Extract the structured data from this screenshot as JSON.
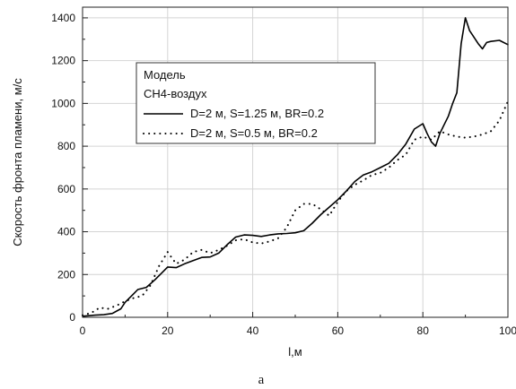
{
  "chart_data": {
    "type": "line",
    "xlabel": "l,м",
    "ylabel": "Скорость фронта пламени, м/с",
    "xlim": [
      0,
      100
    ],
    "ylim": [
      0,
      1450
    ],
    "xticks": [
      0,
      20,
      40,
      60,
      80,
      100
    ],
    "yticks": [
      0,
      200,
      400,
      600,
      800,
      1000,
      1200,
      1400
    ],
    "xtick_labels": [
      "0",
      "20",
      "40",
      "60",
      "80",
      "100"
    ],
    "ytick_labels": [
      "0",
      "200",
      "400",
      "600",
      "800",
      "1000",
      "1200",
      "1400"
    ],
    "grid": true,
    "legend": {
      "position": "upper-left",
      "title_lines": [
        "Модель",
        "CH4-воздух"
      ]
    },
    "series": [
      {
        "name": "D=2 м, S=1.25 м, BR=0.2",
        "style": "solid",
        "color": "#000000",
        "points": [
          [
            0,
            5
          ],
          [
            3,
            10
          ],
          [
            5,
            12
          ],
          [
            7,
            18
          ],
          [
            9,
            40
          ],
          [
            10,
            70
          ],
          [
            12,
            110
          ],
          [
            13,
            130
          ],
          [
            15,
            140
          ],
          [
            17,
            175
          ],
          [
            19,
            215
          ],
          [
            20,
            235
          ],
          [
            22,
            232
          ],
          [
            24,
            250
          ],
          [
            26,
            265
          ],
          [
            28,
            280
          ],
          [
            30,
            282
          ],
          [
            32,
            300
          ],
          [
            34,
            340
          ],
          [
            36,
            375
          ],
          [
            38,
            385
          ],
          [
            40,
            383
          ],
          [
            42,
            378
          ],
          [
            44,
            385
          ],
          [
            46,
            390
          ],
          [
            48,
            392
          ],
          [
            50,
            395
          ],
          [
            52,
            405
          ],
          [
            54,
            440
          ],
          [
            56,
            480
          ],
          [
            58,
            515
          ],
          [
            60,
            550
          ],
          [
            62,
            590
          ],
          [
            64,
            635
          ],
          [
            66,
            665
          ],
          [
            68,
            680
          ],
          [
            70,
            700
          ],
          [
            72,
            720
          ],
          [
            74,
            760
          ],
          [
            76,
            810
          ],
          [
            78,
            880
          ],
          [
            80,
            905
          ],
          [
            81,
            860
          ],
          [
            82,
            820
          ],
          [
            83,
            800
          ],
          [
            84,
            860
          ],
          [
            85,
            900
          ],
          [
            86,
            940
          ],
          [
            87,
            1000
          ],
          [
            88,
            1050
          ],
          [
            89,
            1280
          ],
          [
            90,
            1400
          ],
          [
            91,
            1340
          ],
          [
            92,
            1310
          ],
          [
            93,
            1280
          ],
          [
            94,
            1255
          ],
          [
            95,
            1285
          ],
          [
            96,
            1290
          ],
          [
            98,
            1295
          ],
          [
            100,
            1275
          ]
        ]
      },
      {
        "name": "D=2 м, S=0.5 м, BR=0.2",
        "style": "dotted",
        "color": "#000000",
        "points": [
          [
            0,
            10
          ],
          [
            2,
            20
          ],
          [
            4,
            45
          ],
          [
            6,
            40
          ],
          [
            8,
            55
          ],
          [
            10,
            75
          ],
          [
            12,
            90
          ],
          [
            14,
            100
          ],
          [
            16,
            150
          ],
          [
            18,
            240
          ],
          [
            20,
            305
          ],
          [
            22,
            250
          ],
          [
            24,
            270
          ],
          [
            26,
            305
          ],
          [
            28,
            315
          ],
          [
            30,
            300
          ],
          [
            32,
            315
          ],
          [
            34,
            335
          ],
          [
            36,
            360
          ],
          [
            38,
            365
          ],
          [
            40,
            350
          ],
          [
            42,
            345
          ],
          [
            44,
            355
          ],
          [
            46,
            370
          ],
          [
            48,
            420
          ],
          [
            50,
            500
          ],
          [
            52,
            530
          ],
          [
            54,
            530
          ],
          [
            56,
            505
          ],
          [
            58,
            475
          ],
          [
            60,
            540
          ],
          [
            62,
            590
          ],
          [
            64,
            620
          ],
          [
            66,
            640
          ],
          [
            68,
            665
          ],
          [
            70,
            675
          ],
          [
            72,
            700
          ],
          [
            74,
            735
          ],
          [
            76,
            760
          ],
          [
            78,
            830
          ],
          [
            80,
            845
          ],
          [
            82,
            830
          ],
          [
            84,
            870
          ],
          [
            86,
            855
          ],
          [
            88,
            845
          ],
          [
            90,
            840
          ],
          [
            92,
            845
          ],
          [
            94,
            855
          ],
          [
            96,
            870
          ],
          [
            98,
            920
          ],
          [
            100,
            1010
          ]
        ]
      }
    ],
    "caption": "а"
  },
  "colors": {
    "grid": "#d4d4d4",
    "axis": "#222222",
    "line": "#000000",
    "background": "#ffffff"
  }
}
